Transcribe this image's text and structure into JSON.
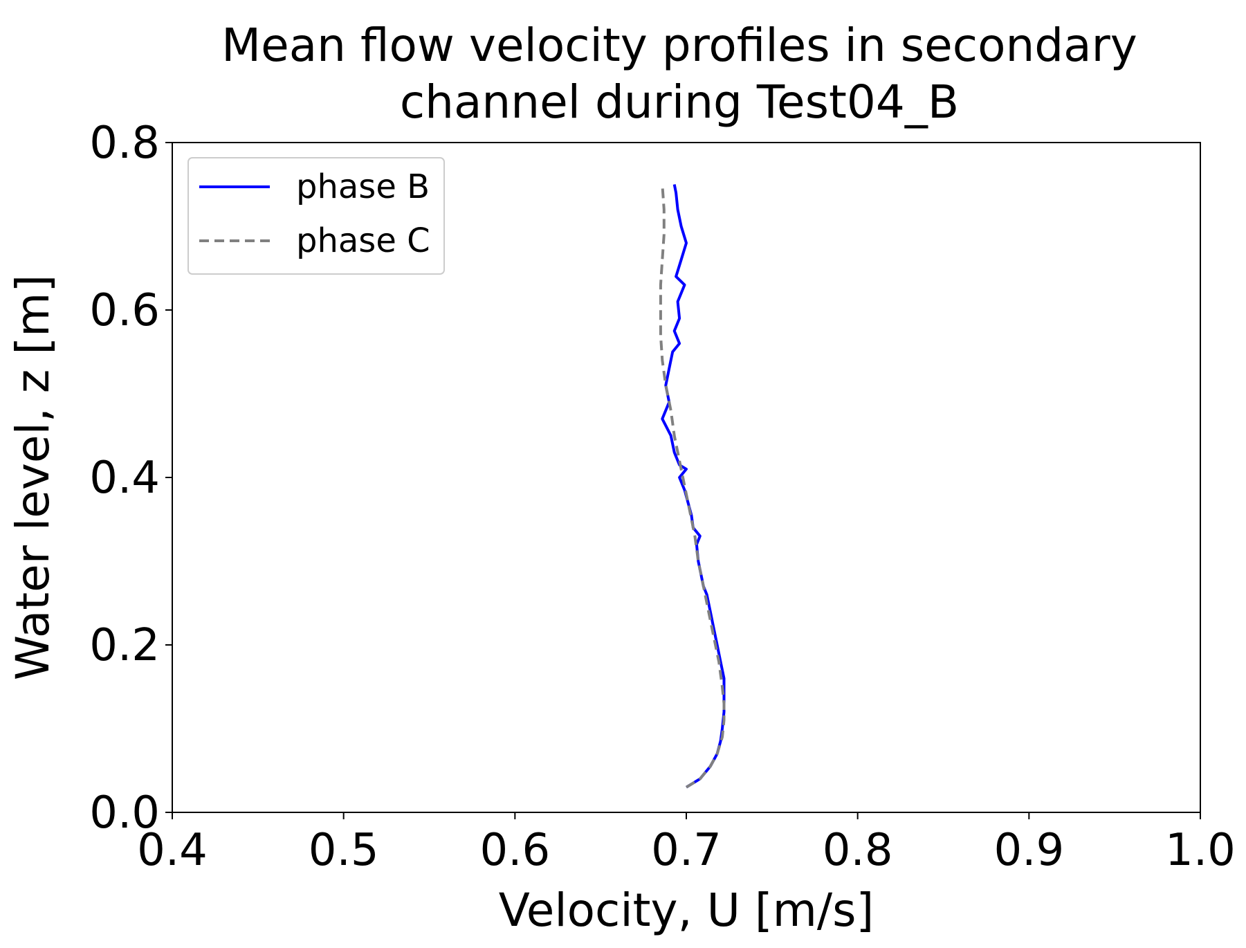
{
  "chart_data": {
    "type": "line",
    "title": [
      "Mean flow velocity profiles in secondary",
      "channel during Test04_B"
    ],
    "xlabel": "Velocity, U [m/s]",
    "ylabel": "Water level, z [m]",
    "xlim": [
      0.4,
      1.0
    ],
    "ylim": [
      0.0,
      0.8
    ],
    "xticks": [
      "0.4",
      "0.5",
      "0.6",
      "0.7",
      "0.8",
      "0.9",
      "1.0"
    ],
    "yticks": [
      "0.0",
      "0.2",
      "0.4",
      "0.6",
      "0.8"
    ],
    "grid": false,
    "legend_position": "upper-left",
    "series": [
      {
        "name": "phase B",
        "color": "#0000ff",
        "style": "solid",
        "points": [
          [
            0.7,
            0.03
          ],
          [
            0.708,
            0.04
          ],
          [
            0.714,
            0.055
          ],
          [
            0.718,
            0.07
          ],
          [
            0.72,
            0.085
          ],
          [
            0.721,
            0.1
          ],
          [
            0.722,
            0.12
          ],
          [
            0.722,
            0.14
          ],
          [
            0.722,
            0.16
          ],
          [
            0.72,
            0.18
          ],
          [
            0.718,
            0.2
          ],
          [
            0.716,
            0.22
          ],
          [
            0.714,
            0.24
          ],
          [
            0.712,
            0.26
          ],
          [
            0.71,
            0.27
          ],
          [
            0.709,
            0.28
          ],
          [
            0.707,
            0.3
          ],
          [
            0.706,
            0.32
          ],
          [
            0.708,
            0.33
          ],
          [
            0.704,
            0.34
          ],
          [
            0.703,
            0.355
          ],
          [
            0.701,
            0.37
          ],
          [
            0.699,
            0.385
          ],
          [
            0.696,
            0.4
          ],
          [
            0.7,
            0.41
          ],
          [
            0.696,
            0.415
          ],
          [
            0.693,
            0.43
          ],
          [
            0.691,
            0.45
          ],
          [
            0.686,
            0.47
          ],
          [
            0.69,
            0.49
          ],
          [
            0.688,
            0.51
          ],
          [
            0.69,
            0.53
          ],
          [
            0.692,
            0.55
          ],
          [
            0.696,
            0.56
          ],
          [
            0.693,
            0.575
          ],
          [
            0.696,
            0.59
          ],
          [
            0.695,
            0.61
          ],
          [
            0.699,
            0.63
          ],
          [
            0.694,
            0.64
          ],
          [
            0.697,
            0.66
          ],
          [
            0.7,
            0.68
          ],
          [
            0.697,
            0.7
          ],
          [
            0.695,
            0.72
          ],
          [
            0.694,
            0.74
          ],
          [
            0.693,
            0.75
          ]
        ]
      },
      {
        "name": "phase C",
        "color": "#808080",
        "style": "dashed",
        "points": [
          [
            0.7,
            0.03
          ],
          [
            0.708,
            0.04
          ],
          [
            0.714,
            0.055
          ],
          [
            0.718,
            0.07
          ],
          [
            0.721,
            0.09
          ],
          [
            0.722,
            0.11
          ],
          [
            0.722,
            0.13
          ],
          [
            0.721,
            0.15
          ],
          [
            0.719,
            0.18
          ],
          [
            0.717,
            0.2
          ],
          [
            0.715,
            0.22
          ],
          [
            0.712,
            0.25
          ],
          [
            0.71,
            0.27
          ],
          [
            0.707,
            0.3
          ],
          [
            0.705,
            0.33
          ],
          [
            0.702,
            0.36
          ],
          [
            0.699,
            0.39
          ],
          [
            0.696,
            0.42
          ],
          [
            0.693,
            0.45
          ],
          [
            0.691,
            0.48
          ],
          [
            0.688,
            0.51
          ],
          [
            0.686,
            0.54
          ],
          [
            0.685,
            0.57
          ],
          [
            0.685,
            0.6
          ],
          [
            0.685,
            0.63
          ],
          [
            0.686,
            0.66
          ],
          [
            0.687,
            0.69
          ],
          [
            0.687,
            0.72
          ],
          [
            0.686,
            0.75
          ]
        ]
      }
    ]
  }
}
